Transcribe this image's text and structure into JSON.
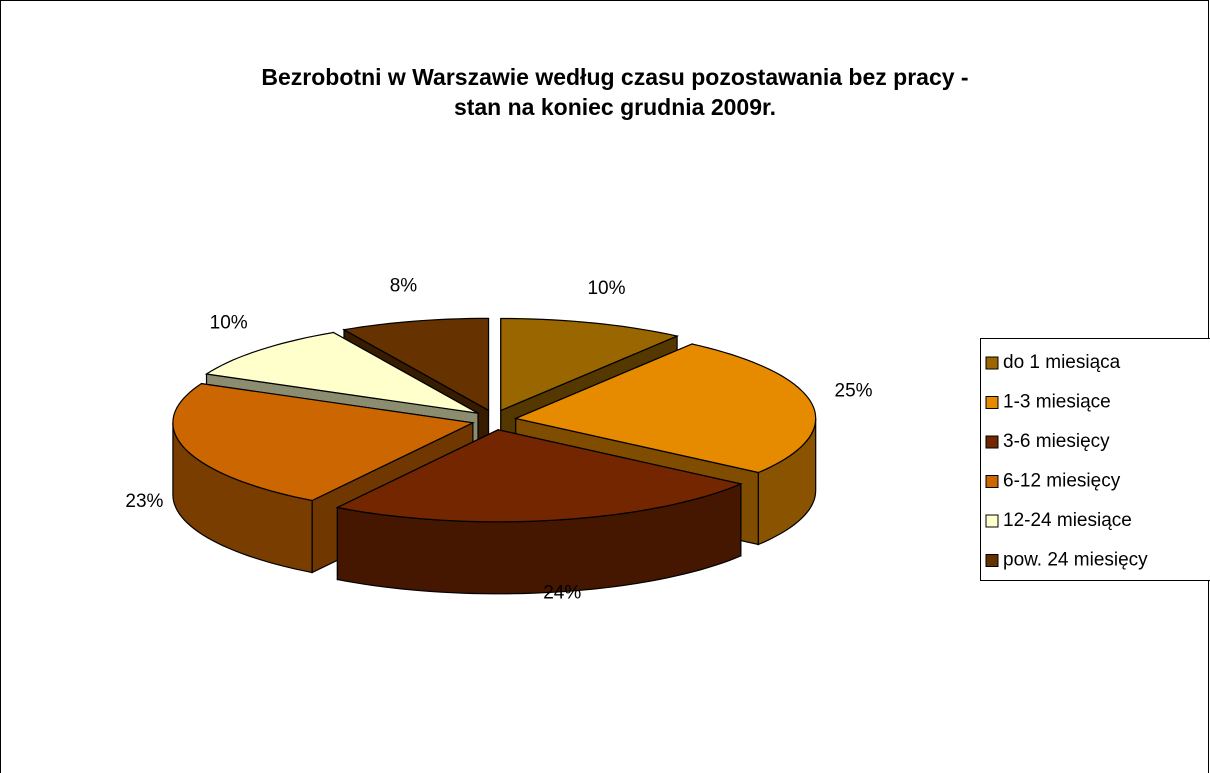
{
  "chart_data": {
    "type": "pie3d",
    "title": [
      "Bezrobotni w Warszawie według czasu pozostawania bez pracy -",
      "stan na koniec grudnia 2009r."
    ],
    "categories": [
      "do 1 miesiąca",
      "1-3 miesiące",
      "3-6 miesięcy",
      "6-12 miesięcy",
      "12-24 miesiące",
      "pow. 24 miesięcy"
    ],
    "values": [
      10,
      25,
      24,
      23,
      10,
      8
    ],
    "value_labels": [
      "10%",
      "25%",
      "24%",
      "23%",
      "10%",
      "8%"
    ],
    "colors": [
      "#996600",
      "#e68a00",
      "#732600",
      "#cc6600",
      "#ffffcc",
      "#663300"
    ],
    "legend": "right"
  }
}
